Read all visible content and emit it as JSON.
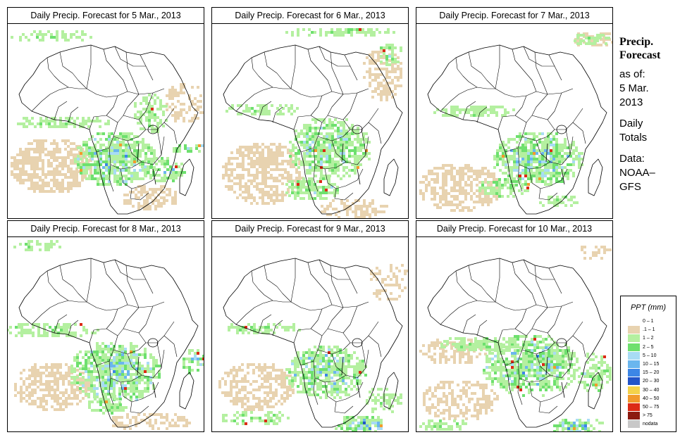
{
  "panels": [
    {
      "title": "Daily Precip. Forecast for  5 Mar., 2013"
    },
    {
      "title": "Daily Precip. Forecast for  6 Mar., 2013"
    },
    {
      "title": "Daily Precip. Forecast for  7 Mar., 2013"
    },
    {
      "title": "Daily Precip. Forecast for  8 Mar., 2013"
    },
    {
      "title": "Daily Precip. Forecast for  9 Mar., 2013"
    },
    {
      "title": "Daily Precip. Forecast for  10 Mar., 2013"
    }
  ],
  "sidebar": {
    "heading_line1": "Precip.",
    "heading_line2": "Forecast",
    "asof_line1": "as of:",
    "asof_line2": "5 Mar.",
    "asof_line3": "2013",
    "daily_line1": "Daily",
    "daily_line2": "Totals",
    "data_line1": "Data:",
    "data_line2": "NOAA–",
    "data_line3": "GFS"
  },
  "legend": {
    "title": "PPT (mm)",
    "items": [
      {
        "label": "0 – 1",
        "color": "#ffffff"
      },
      {
        "label": ".1 – 1",
        "color": "#e8d3b0"
      },
      {
        "label": "1 – 2",
        "color": "#b4f0a0"
      },
      {
        "label": "2 – 5",
        "color": "#6ee06e"
      },
      {
        "label": "5 – 10",
        "color": "#a8dcf4"
      },
      {
        "label": "10 – 15",
        "color": "#6ab6ee"
      },
      {
        "label": "15 – 20",
        "color": "#3c86e6"
      },
      {
        "label": "20 – 30",
        "color": "#2254c8"
      },
      {
        "label": "30 – 40",
        "color": "#f4d24a"
      },
      {
        "label": "40 – 50",
        "color": "#f29a2c"
      },
      {
        "label": "50 – 75",
        "color": "#dc2a16"
      },
      {
        "label": "> 75",
        "color": "#8c1a10"
      },
      {
        "label": "nodata",
        "color": "#c8c8c8"
      }
    ]
  }
}
